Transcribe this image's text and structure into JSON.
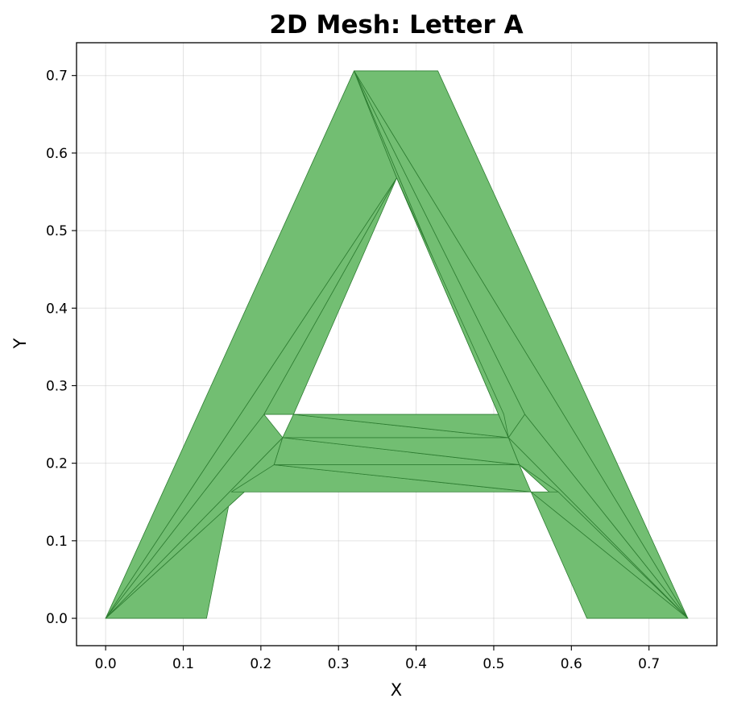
{
  "chart_data": {
    "type": "mesh",
    "title": "2D Mesh: Letter A",
    "xlabel": "X",
    "ylabel": "Y",
    "xlim": [
      -0.0375,
      0.7875
    ],
    "ylim": [
      -0.0353,
      0.7423
    ],
    "xticks": [
      0.0,
      0.1,
      0.2,
      0.3,
      0.4,
      0.5,
      0.6,
      0.7
    ],
    "xtick_labels": [
      "0.0",
      "0.1",
      "0.2",
      "0.3",
      "0.4",
      "0.5",
      "0.6",
      "0.7"
    ],
    "yticks": [
      0.0,
      0.1,
      0.2,
      0.3,
      0.4,
      0.5,
      0.6,
      0.7
    ],
    "ytick_labels": [
      "0.0",
      "0.1",
      "0.2",
      "0.3",
      "0.4",
      "0.5",
      "0.6",
      "0.7"
    ],
    "grid": true,
    "face_color": "#72be72",
    "edge_color": "#2e7d32",
    "vertices": [
      [
        0.0,
        0.0
      ],
      [
        0.13,
        0.0
      ],
      [
        0.162,
        0.163
      ],
      [
        0.204,
        0.263
      ],
      [
        0.242,
        0.263
      ],
      [
        0.228,
        0.233
      ],
      [
        0.217,
        0.198
      ],
      [
        0.375,
        0.568
      ],
      [
        0.32,
        0.706
      ],
      [
        0.428,
        0.706
      ],
      [
        0.513,
        0.263
      ],
      [
        0.54,
        0.263
      ],
      [
        0.519,
        0.233
      ],
      [
        0.533,
        0.198
      ],
      [
        0.548,
        0.163
      ],
      [
        0.583,
        0.163
      ],
      [
        0.62,
        0.0
      ],
      [
        0.75,
        0.0
      ]
    ],
    "triangles": [
      [
        0,
        1,
        2
      ],
      [
        0,
        2,
        6
      ],
      [
        0,
        6,
        5
      ],
      [
        0,
        5,
        3
      ],
      [
        0,
        3,
        7
      ],
      [
        0,
        7,
        8
      ],
      [
        3,
        4,
        7
      ],
      [
        2,
        14,
        6
      ],
      [
        6,
        14,
        13
      ],
      [
        6,
        13,
        5
      ],
      [
        5,
        13,
        12
      ],
      [
        5,
        12,
        4
      ],
      [
        4,
        12,
        10
      ],
      [
        8,
        9,
        17
      ],
      [
        8,
        17,
        11
      ],
      [
        8,
        11,
        12
      ],
      [
        8,
        12,
        7
      ],
      [
        7,
        12,
        10
      ],
      [
        11,
        17,
        12
      ],
      [
        12,
        17,
        13
      ],
      [
        13,
        17,
        15
      ],
      [
        14,
        15,
        17
      ],
      [
        14,
        17,
        16
      ]
    ]
  }
}
